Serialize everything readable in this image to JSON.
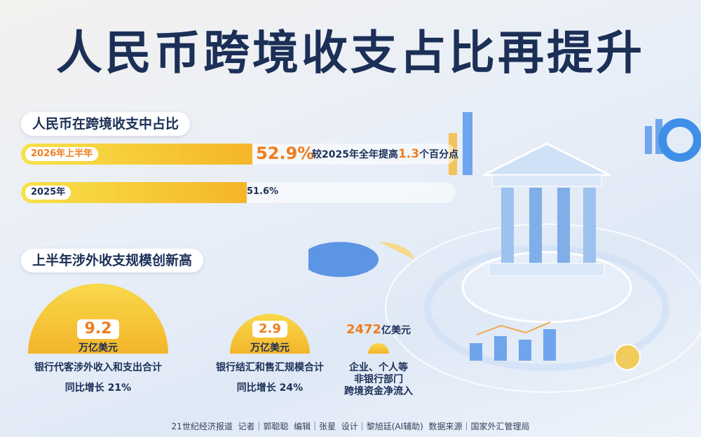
{
  "title": "人民币跨境收支占比再提升",
  "share": {
    "heading": "人民币在跨境收支中占比",
    "categories": [
      "2026年上半年",
      "2025年"
    ],
    "values": [
      52.9,
      51.6
    ],
    "value_labels": [
      "52.9%",
      "51.6%"
    ],
    "note": [
      "较2025年全年提高",
      "1.3",
      "个百分点"
    ]
  },
  "scale": {
    "heading": "上半年涉外收支规模创新高",
    "items": [
      {
        "value": 9.2,
        "unit": "万亿美元",
        "desc": [
          "银行代客涉外收入和支出合计"
        ],
        "growth": "同比增长 21%"
      },
      {
        "value": 2.9,
        "unit": "万亿美元",
        "desc": [
          "银行结汇和售汇规模合计"
        ],
        "growth": "同比增长 24%"
      },
      {
        "value": 2472,
        "unit": "亿美元",
        "desc": [
          "企业、个人等",
          "非银行部门",
          "跨境资金净流入"
        ]
      }
    ]
  },
  "footer": "21世纪经济报道  记者｜郭聪聪  编辑｜张星  设计｜黎旭廷(AI辅助)  数据来源｜国家外汇管理局"
}
